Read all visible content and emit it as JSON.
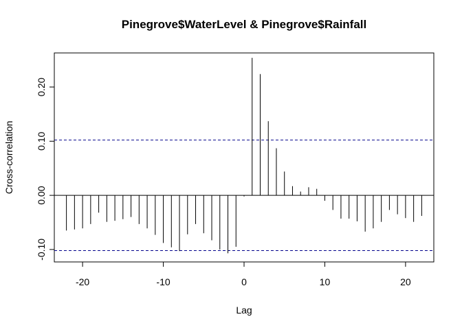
{
  "chart_data": {
    "type": "bar",
    "title": "Pinegrove$WaterLevel & Pinegrove$Rainfall",
    "xlabel": "Lag",
    "ylabel": "Cross-correlation",
    "xlim": [
      -23.5,
      23.5
    ],
    "ylim": [
      -0.123,
      0.263
    ],
    "x_ticks": [
      -20,
      -10,
      0,
      10,
      20
    ],
    "x_tick_labels": [
      "-20",
      "-10",
      "0",
      "10",
      "20"
    ],
    "y_ticks": [
      -0.1,
      0.0,
      0.1,
      0.2
    ],
    "y_tick_labels": [
      "-0.10",
      "0.00",
      "0.10",
      "0.20"
    ],
    "confidence_band": 0.102,
    "lags": [
      -22,
      -21,
      -20,
      -19,
      -18,
      -17,
      -16,
      -15,
      -14,
      -13,
      -12,
      -11,
      -10,
      -9,
      -8,
      -7,
      -6,
      -5,
      -4,
      -3,
      -2,
      -1,
      0,
      1,
      2,
      3,
      4,
      5,
      6,
      7,
      8,
      9,
      10,
      11,
      12,
      13,
      14,
      15,
      16,
      17,
      18,
      19,
      20,
      21,
      22
    ],
    "values": [
      -0.065,
      -0.063,
      -0.061,
      -0.053,
      -0.032,
      -0.049,
      -0.047,
      -0.044,
      -0.04,
      -0.053,
      -0.061,
      -0.073,
      -0.088,
      -0.096,
      -0.103,
      -0.072,
      -0.053,
      -0.07,
      -0.083,
      -0.1,
      -0.107,
      -0.095,
      -0.002,
      0.254,
      0.224,
      0.137,
      0.087,
      0.044,
      0.017,
      0.007,
      0.015,
      0.012,
      -0.01,
      -0.027,
      -0.043,
      -0.043,
      -0.048,
      -0.067,
      -0.061,
      -0.049,
      -0.027,
      -0.035,
      -0.042,
      -0.049,
      -0.038
    ],
    "grid": false,
    "legend": "none",
    "colors": {
      "bars": "#000000",
      "band": "#00008B",
      "axes": "#000000"
    }
  }
}
